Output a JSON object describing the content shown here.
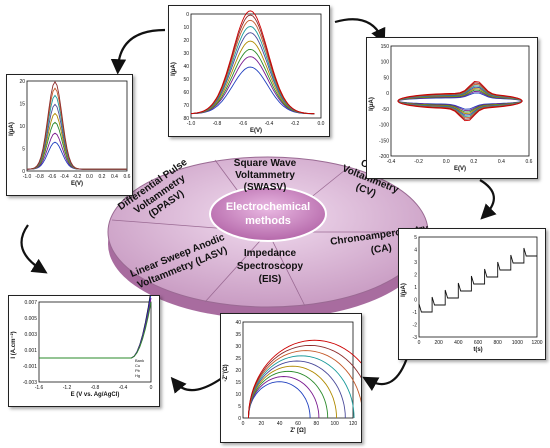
{
  "center": {
    "line1": "Electrochemical",
    "line2": "methods"
  },
  "methods": [
    {
      "line1": "Square Wave",
      "line2": "Voltammetry",
      "line3": "(SWASV)"
    },
    {
      "line1": "Cyclic",
      "line2": "Voltammetry",
      "line3": "(CV)"
    },
    {
      "line1": "Chronoamperometry",
      "line2": "(CA)",
      "line3": ""
    },
    {
      "line1": "Impedance",
      "line2": "Spectroscopy",
      "line3": "(EIS)"
    },
    {
      "line1": "Linear Sweep Anodic",
      "line2": "Voltammetry (LASV)",
      "line3": ""
    },
    {
      "line1": "Differential Pulse",
      "line2": "Voltammetry",
      "line3": "(DPASV)"
    }
  ],
  "colors": {
    "disk_top": "#d9b3d4",
    "disk_side": "#b07aa8",
    "center_oval": "#c98cc0",
    "curves": [
      "#1f3fbf",
      "#7a1b8f",
      "#2a8a2a",
      "#b08a00",
      "#4a4a9a",
      "#1a9a9a",
      "#c45a2a",
      "#8c2a2a",
      "#cc0000"
    ]
  },
  "charts": {
    "swasv": {
      "ylabel": "I(μA)",
      "xlabel": "E(V)",
      "yticks": [
        "0",
        "10",
        "20",
        "30",
        "40",
        "50",
        "60",
        "70",
        "80"
      ],
      "xticks": [
        "-1.0",
        "-0.8",
        "-0.6",
        "-0.4",
        "-0.2",
        "0.0"
      ]
    },
    "cv": {
      "ylabel": "I(μA)",
      "xlabel": "E(V)",
      "yticks": [
        "150",
        "100",
        "50",
        "0",
        "-50",
        "-100",
        "-150",
        "-200"
      ],
      "xticks": [
        "-0.4",
        "-0.2",
        "0.0",
        "0.2",
        "0.4",
        "0.6"
      ]
    },
    "dpasv": {
      "ylabel": "I(μA)",
      "xlabel": "E(V)",
      "yticks": [
        "20",
        "15",
        "10",
        "5",
        "0"
      ],
      "xticks": [
        "-1.0",
        "-0.8",
        "-0.6",
        "-0.4",
        "-0.2",
        "0.0",
        "0.2",
        "0.4",
        "0.6"
      ]
    },
    "lasv": {
      "ylabel": "I (A.cm⁻²)",
      "xlabel": "E (V vs. Ag/AgCl)",
      "yticks": [
        "0.007",
        "0.005",
        "0.003",
        "0.001",
        "-0.001",
        "-0.003"
      ],
      "xticks": [
        "-1.6",
        "-1.2",
        "-0.8",
        "-0.4",
        "0"
      ],
      "legend": [
        "Bank",
        "Cu",
        "Pb",
        "Hg"
      ]
    },
    "eis": {
      "ylabel": "-Z''(Ω)",
      "xlabel": "Z' [Ω]",
      "yticks": [
        "40",
        "35",
        "30",
        "25",
        "20",
        "15",
        "10",
        "5",
        "0"
      ],
      "xticks": [
        "0",
        "20",
        "40",
        "60",
        "80",
        "100",
        "120"
      ]
    },
    "ca": {
      "ylabel": "I(μA)",
      "xlabel": "t(s)",
      "yticks": [
        "5",
        "4",
        "3",
        "2",
        "1",
        "0",
        "-1",
        "-2",
        "-3"
      ],
      "xticks": [
        "0",
        "200",
        "400",
        "600",
        "800",
        "1000",
        "1200"
      ]
    }
  }
}
